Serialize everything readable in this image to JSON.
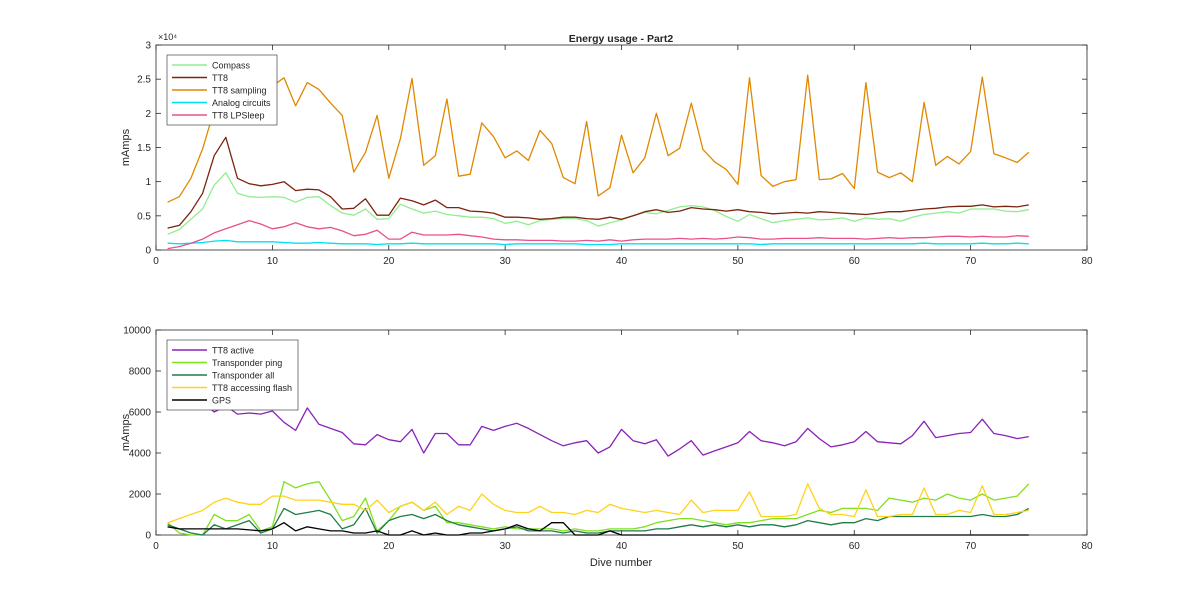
{
  "figure": {
    "title": "Energy usage - Part2",
    "xlabel": "Dive number"
  },
  "chart_data": [
    {
      "type": "line",
      "title": "Energy usage - Part2",
      "xlabel": "",
      "ylabel": "mAmps",
      "xlim": [
        0,
        80
      ],
      "ylim": [
        0,
        30000
      ],
      "xticks": [
        0,
        10,
        20,
        30,
        40,
        50,
        60,
        70,
        80
      ],
      "yticks": [
        0,
        5000,
        10000,
        15000,
        20000,
        25000,
        30000
      ],
      "ytick_labels": [
        "0",
        "0.5",
        "1",
        "1.5",
        "2",
        "2.5",
        "3"
      ],
      "y_exponent_label": "×10⁴",
      "grid": false,
      "legend_position": "top-left",
      "x": [
        1,
        2,
        3,
        4,
        5,
        6,
        7,
        8,
        9,
        10,
        11,
        12,
        13,
        14,
        15,
        16,
        17,
        18,
        19,
        20,
        21,
        22,
        23,
        24,
        25,
        26,
        27,
        28,
        29,
        30,
        31,
        32,
        33,
        34,
        35,
        36,
        37,
        38,
        39,
        40,
        41,
        42,
        43,
        44,
        45,
        46,
        47,
        48,
        49,
        50,
        51,
        52,
        53,
        54,
        55,
        56,
        57,
        58,
        59,
        60,
        61,
        62,
        63,
        64,
        65,
        66,
        67,
        68,
        69,
        70,
        71,
        72,
        73,
        74,
        75
      ],
      "series": [
        {
          "name": "Compass",
          "color": "#90ee90",
          "values": [
            2300,
            3000,
            4500,
            6000,
            9500,
            11300,
            8300,
            7800,
            7700,
            7800,
            7700,
            7000,
            7700,
            7800,
            6500,
            5400,
            5100,
            6000,
            4500,
            4600,
            6700,
            6000,
            5400,
            5700,
            5200,
            5000,
            4800,
            4800,
            4600,
            3900,
            4200,
            3700,
            4300,
            4500,
            4600,
            4600,
            4300,
            3500,
            4000,
            4400,
            5000,
            5500,
            5300,
            5800,
            6300,
            6500,
            6300,
            5800,
            4900,
            4200,
            5200,
            4600,
            4000,
            4300,
            4500,
            4700,
            4400,
            4500,
            4700,
            4200,
            4700,
            4500,
            4600,
            4200,
            4800,
            5200,
            5400,
            5600,
            5400,
            6000,
            6000,
            6000,
            5700,
            5600,
            5900
          ]
        },
        {
          "name": "TT8",
          "color": "#7b2410",
          "values": [
            3200,
            3600,
            5600,
            8300,
            13800,
            16500,
            10500,
            9700,
            9400,
            9600,
            10000,
            8700,
            8900,
            8800,
            7800,
            6000,
            6100,
            7500,
            5100,
            5100,
            7600,
            7200,
            6600,
            7300,
            6200,
            6200,
            5700,
            5600,
            5400,
            4800,
            4800,
            4700,
            4500,
            4600,
            4800,
            4800,
            4600,
            4500,
            4800,
            4500,
            5000,
            5600,
            5900,
            5500,
            5700,
            6200,
            6000,
            5900,
            5700,
            5900,
            5600,
            5500,
            5300,
            5400,
            5500,
            5400,
            5600,
            5500,
            5400,
            5300,
            5200,
            5400,
            5600,
            5600,
            5800,
            6000,
            6100,
            6300,
            6400,
            6400,
            6600,
            6300,
            6400,
            6300,
            6600
          ]
        },
        {
          "name": "TT8 sampling",
          "color": "#e08800",
          "values": [
            7000,
            7800,
            10500,
            14800,
            20500,
            21000,
            24800,
            23500,
            24500,
            24000,
            25200,
            21100,
            24500,
            23500,
            21500,
            19700,
            11400,
            14300,
            19700,
            10500,
            16300,
            25100,
            12400,
            13800,
            22100,
            10800,
            11100,
            18600,
            16600,
            13500,
            14500,
            13100,
            17500,
            15600,
            10600,
            9700,
            18800,
            7900,
            9100,
            16800,
            11300,
            13500,
            20000,
            13800,
            14900,
            21500,
            14700,
            12900,
            11800,
            9600,
            25200,
            10900,
            9300,
            10000,
            10300,
            25600,
            10300,
            10400,
            11200,
            9000,
            24500,
            11400,
            10600,
            11300,
            10000,
            21600,
            12400,
            13700,
            12600,
            14400,
            25300,
            14100,
            13500,
            12800,
            14300
          ]
        },
        {
          "name": "Analog circuits",
          "color": "#00e0f0",
          "values": [
            1000,
            900,
            1000,
            1100,
            1300,
            1400,
            1200,
            1200,
            1200,
            1200,
            1100,
            1000,
            1000,
            1100,
            1000,
            900,
            900,
            900,
            800,
            900,
            900,
            1000,
            900,
            900,
            900,
            900,
            900,
            900,
            900,
            800,
            900,
            900,
            900,
            900,
            900,
            900,
            800,
            800,
            800,
            900,
            900,
            900,
            900,
            900,
            900,
            900,
            900,
            900,
            900,
            900,
            900,
            800,
            900,
            900,
            900,
            900,
            900,
            900,
            900,
            900,
            900,
            900,
            900,
            900,
            900,
            1000,
            900,
            900,
            900,
            900,
            1000,
            900,
            900,
            1000,
            900
          ]
        },
        {
          "name": "TT8 LPSleep",
          "color": "#e8508c",
          "values": [
            200,
            500,
            1000,
            1600,
            2500,
            3100,
            3700,
            4300,
            3800,
            3100,
            3400,
            4000,
            3400,
            3100,
            3300,
            2800,
            2100,
            2300,
            2900,
            1600,
            1600,
            2600,
            2200,
            2200,
            2200,
            2300,
            2100,
            1900,
            1600,
            1500,
            1500,
            1400,
            1400,
            1400,
            1300,
            1300,
            1400,
            1300,
            1500,
            1300,
            1500,
            1600,
            1600,
            1600,
            1700,
            1600,
            1700,
            1600,
            1700,
            1900,
            1800,
            1600,
            1600,
            1700,
            1700,
            1700,
            1800,
            1700,
            1700,
            1700,
            1600,
            1700,
            1800,
            1700,
            1800,
            1800,
            1900,
            2000,
            2000,
            1900,
            2000,
            1900,
            1900,
            2100,
            2000
          ]
        }
      ]
    },
    {
      "type": "line",
      "title": "",
      "xlabel": "Dive number",
      "ylabel": "mAmps",
      "xlim": [
        0,
        80
      ],
      "ylim": [
        0,
        10000
      ],
      "xticks": [
        0,
        10,
        20,
        30,
        40,
        50,
        60,
        70,
        80
      ],
      "yticks": [
        0,
        2000,
        4000,
        6000,
        8000,
        10000
      ],
      "ytick_labels": [
        "0",
        "2000",
        "4000",
        "6000",
        "8000",
        "10000"
      ],
      "grid": false,
      "legend_position": "top-left",
      "x": [
        1,
        2,
        3,
        4,
        5,
        6,
        7,
        8,
        9,
        10,
        11,
        12,
        13,
        14,
        15,
        16,
        17,
        18,
        19,
        20,
        21,
        22,
        23,
        24,
        25,
        26,
        27,
        28,
        29,
        30,
        31,
        32,
        33,
        34,
        35,
        36,
        37,
        38,
        39,
        40,
        41,
        42,
        43,
        44,
        45,
        46,
        47,
        48,
        49,
        50,
        51,
        52,
        53,
        54,
        55,
        56,
        57,
        58,
        59,
        60,
        61,
        62,
        63,
        64,
        65,
        66,
        67,
        68,
        69,
        70,
        71,
        72,
        73,
        74,
        75
      ],
      "series": [
        {
          "name": "TT8 active",
          "color": "#8a22b8",
          "values": [
            8600,
            8200,
            7600,
            6500,
            6000,
            6300,
            5900,
            5950,
            5900,
            6050,
            5500,
            5100,
            6200,
            5400,
            5200,
            5000,
            4450,
            4400,
            4900,
            4650,
            4550,
            5150,
            4000,
            4950,
            4950,
            4400,
            4400,
            5300,
            5100,
            5300,
            5450,
            5200,
            4900,
            4600,
            4350,
            4500,
            4600,
            4000,
            4300,
            5150,
            4600,
            4450,
            4650,
            3850,
            4200,
            4600,
            3900,
            4100,
            4300,
            4500,
            5050,
            4600,
            4500,
            4350,
            4550,
            5200,
            4700,
            4300,
            4400,
            4550,
            5050,
            4550,
            4500,
            4450,
            4850,
            5550,
            4750,
            4850,
            4950,
            5000,
            5650,
            4950,
            4850,
            4700,
            4800
          ]
        },
        {
          "name": "Transponder ping",
          "color": "#80e020",
          "values": [
            600,
            100,
            0,
            0,
            1000,
            700,
            700,
            1000,
            200,
            400,
            2600,
            2300,
            2500,
            2600,
            1700,
            700,
            900,
            1800,
            200,
            700,
            1400,
            1600,
            1200,
            1400,
            600,
            600,
            500,
            400,
            300,
            400,
            300,
            300,
            300,
            300,
            200,
            300,
            200,
            200,
            300,
            300,
            300,
            400,
            600,
            700,
            800,
            800,
            700,
            600,
            500,
            600,
            600,
            700,
            800,
            800,
            800,
            1000,
            1200,
            1100,
            1300,
            1300,
            1300,
            1200,
            1800,
            1700,
            1600,
            1800,
            1700,
            2000,
            1800,
            1700,
            2000,
            1700,
            1800,
            1900,
            2500
          ]
        },
        {
          "name": "Transponder all",
          "color": "#1e7d48",
          "values": [
            500,
            300,
            100,
            0,
            500,
            300,
            500,
            700,
            100,
            300,
            1300,
            1000,
            1100,
            1200,
            1000,
            300,
            500,
            1300,
            100,
            700,
            900,
            1000,
            800,
            1000,
            700,
            500,
            400,
            300,
            200,
            300,
            400,
            200,
            200,
            200,
            100,
            200,
            100,
            100,
            200,
            200,
            200,
            200,
            300,
            300,
            400,
            500,
            400,
            500,
            400,
            500,
            400,
            500,
            500,
            400,
            500,
            700,
            600,
            500,
            600,
            600,
            800,
            700,
            900,
            900,
            900,
            900,
            900,
            900,
            900,
            900,
            1000,
            900,
            900,
            1000,
            1300
          ]
        },
        {
          "name": "TT8 accessing flash",
          "color": "#ffd21c",
          "values": [
            600,
            800,
            1000,
            1200,
            1600,
            1800,
            1600,
            1500,
            1500,
            1900,
            1900,
            1700,
            1700,
            1700,
            1600,
            1500,
            1500,
            1200,
            1700,
            1100,
            1400,
            1600,
            1200,
            1600,
            1000,
            1400,
            1200,
            2000,
            1500,
            1200,
            1100,
            1100,
            1400,
            1100,
            1100,
            1000,
            1200,
            1100,
            1500,
            1300,
            1200,
            1100,
            1200,
            1100,
            1000,
            1700,
            1100,
            1200,
            1200,
            1200,
            2100,
            900,
            900,
            900,
            1000,
            2500,
            1300,
            1000,
            1000,
            900,
            2200,
            900,
            900,
            1000,
            1000,
            2300,
            1000,
            1000,
            1200,
            1100,
            2400,
            1000,
            1000,
            1100,
            1200
          ]
        },
        {
          "name": "GPS",
          "color": "#000000",
          "values": [
            400,
            300,
            300,
            300,
            300,
            300,
            300,
            250,
            200,
            300,
            600,
            200,
            400,
            300,
            200,
            200,
            100,
            100,
            200,
            0,
            0,
            200,
            0,
            100,
            0,
            0,
            100,
            100,
            200,
            300,
            500,
            300,
            200,
            600,
            600,
            0,
            0,
            0,
            200,
            0,
            0,
            0,
            0,
            0,
            0,
            0,
            0,
            0,
            0,
            0,
            0,
            0,
            0,
            0,
            0,
            0,
            0,
            0,
            0,
            0,
            0,
            0,
            0,
            0,
            0,
            0,
            0,
            0,
            0,
            0,
            0,
            0,
            0,
            0,
            0
          ]
        }
      ]
    }
  ]
}
